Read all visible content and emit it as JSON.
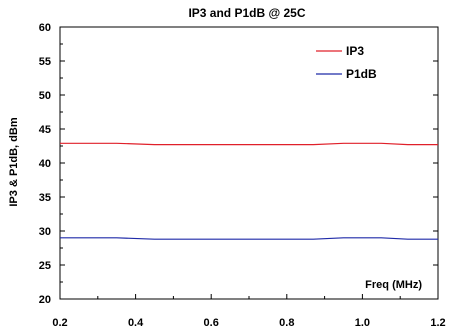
{
  "chart_data": {
    "type": "line",
    "title": "IP3 and P1dB @ 25C",
    "xlabel": "",
    "ylabel": "IP3 & P1dB, dBm",
    "annotation": "Freq (MHz)",
    "xlim": [
      0.2,
      1.2
    ],
    "ylim": [
      20,
      60
    ],
    "xticks": [
      "0.2",
      "0.4",
      "0.6",
      "0.8",
      "1.0",
      "1.2"
    ],
    "yticks": [
      "20",
      "25",
      "30",
      "35",
      "40",
      "45",
      "50",
      "55",
      "60"
    ],
    "grid": false,
    "legend": "top-right",
    "series": [
      {
        "name": "IP3",
        "color": "#e0202a",
        "x": [
          0.2,
          0.35,
          0.45,
          0.6,
          0.75,
          0.87,
          0.95,
          1.05,
          1.12,
          1.2
        ],
        "y": [
          42.9,
          42.9,
          42.7,
          42.7,
          42.7,
          42.7,
          42.9,
          42.9,
          42.7,
          42.7
        ]
      },
      {
        "name": "P1dB",
        "color": "#1f2aa8",
        "x": [
          0.2,
          0.35,
          0.45,
          0.6,
          0.75,
          0.87,
          0.95,
          1.05,
          1.12,
          1.2
        ],
        "y": [
          29.0,
          29.0,
          28.8,
          28.8,
          28.8,
          28.8,
          29.0,
          29.0,
          28.8,
          28.8
        ]
      }
    ]
  }
}
